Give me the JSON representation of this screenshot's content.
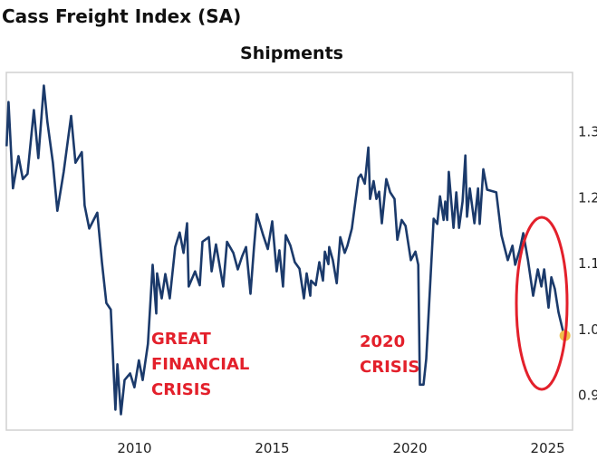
{
  "chart_data": {
    "type": "line",
    "title": "Cass Freight Index (SA)",
    "subtitle": "Shipments",
    "xlabel": "",
    "ylabel": "",
    "xlim": [
      2005.35,
      2025.9
    ],
    "ylim": [
      0.846,
      1.389
    ],
    "x_ticks": [
      2010,
      2015,
      2020,
      2025
    ],
    "x_tick_labels": [
      "2010",
      "2015",
      "2020",
      "2025"
    ],
    "y_ticks": [
      0.9,
      1.0,
      1.1,
      1.2,
      1.3
    ],
    "y_tick_labels": [
      "0.9",
      "1.0",
      "1.1",
      "1.2",
      "1.3"
    ],
    "y_axis_side": "right",
    "grid": false,
    "colors": {
      "line": "#1b3a6b",
      "last_point": "#f0bf4c",
      "annotation": "#e3202b",
      "axis": "#cfcfcf"
    },
    "series": [
      {
        "x": [
          2005.36,
          2005.43,
          2005.59,
          2005.79,
          2005.95,
          2006.12,
          2006.35,
          2006.51,
          2006.71,
          2006.84,
          2007.04,
          2007.2,
          2007.43,
          2007.7,
          2007.86,
          2008.09,
          2008.19,
          2008.36,
          2008.65,
          2008.82,
          2008.98,
          2009.14,
          2009.31,
          2009.38,
          2009.51,
          2009.64,
          2009.84,
          2010.0,
          2010.16,
          2010.3,
          2010.49,
          2010.66,
          2010.79,
          2010.82,
          2010.99,
          2011.12,
          2011.28,
          2011.48,
          2011.64,
          2011.78,
          2011.91,
          2011.97,
          2012.2,
          2012.37,
          2012.47,
          2012.7,
          2012.8,
          2012.96,
          2013.22,
          2013.36,
          2013.59,
          2013.75,
          2013.91,
          2014.05,
          2014.21,
          2014.34,
          2014.44,
          2014.67,
          2014.84,
          2015.0,
          2015.16,
          2015.26,
          2015.39,
          2015.49,
          2015.66,
          2015.82,
          2015.99,
          2016.15,
          2016.25,
          2016.38,
          2016.41,
          2016.58,
          2016.71,
          2016.84,
          2016.91,
          2017.04,
          2017.07,
          2017.2,
          2017.34,
          2017.47,
          2017.63,
          2017.73,
          2017.89,
          2018.13,
          2018.22,
          2018.36,
          2018.49,
          2018.55,
          2018.68,
          2018.78,
          2018.88,
          2018.98,
          2019.14,
          2019.28,
          2019.44,
          2019.54,
          2019.7,
          2019.84,
          2020.03,
          2020.2,
          2020.3,
          2020.36,
          2020.49,
          2020.59,
          2020.86,
          2020.99,
          2021.09,
          2021.22,
          2021.28,
          2021.35,
          2021.41,
          2021.58,
          2021.68,
          2021.78,
          2021.91,
          2022.01,
          2022.07,
          2022.17,
          2022.34,
          2022.47,
          2022.53,
          2022.66,
          2022.8,
          2023.13,
          2023.32,
          2023.55,
          2023.72,
          2023.82,
          2023.98,
          2024.11,
          2024.28,
          2024.47,
          2024.64,
          2024.77,
          2024.87,
          2025.03,
          2025.13,
          2025.26,
          2025.39,
          2025.56
        ],
        "y": [
          1.277,
          1.344,
          1.213,
          1.262,
          1.227,
          1.235,
          1.332,
          1.259,
          1.369,
          1.314,
          1.252,
          1.179,
          1.238,
          1.323,
          1.252,
          1.268,
          1.187,
          1.152,
          1.176,
          1.101,
          1.039,
          1.029,
          0.877,
          0.946,
          0.87,
          0.922,
          0.932,
          0.911,
          0.952,
          0.922,
          0.977,
          1.097,
          1.023,
          1.084,
          1.046,
          1.083,
          1.046,
          1.124,
          1.146,
          1.115,
          1.16,
          1.064,
          1.087,
          1.066,
          1.132,
          1.139,
          1.087,
          1.128,
          1.064,
          1.132,
          1.115,
          1.09,
          1.11,
          1.124,
          1.053,
          1.124,
          1.174,
          1.142,
          1.121,
          1.163,
          1.087,
          1.119,
          1.064,
          1.142,
          1.126,
          1.101,
          1.091,
          1.046,
          1.084,
          1.05,
          1.073,
          1.066,
          1.101,
          1.073,
          1.117,
          1.098,
          1.124,
          1.104,
          1.069,
          1.139,
          1.115,
          1.126,
          1.152,
          1.229,
          1.234,
          1.22,
          1.275,
          1.197,
          1.224,
          1.197,
          1.208,
          1.16,
          1.227,
          1.207,
          1.197,
          1.135,
          1.165,
          1.156,
          1.104,
          1.117,
          1.097,
          0.915,
          0.915,
          0.954,
          1.167,
          1.159,
          1.201,
          1.165,
          1.193,
          1.165,
          1.238,
          1.153,
          1.207,
          1.153,
          1.193,
          1.263,
          1.17,
          1.213,
          1.16,
          1.213,
          1.159,
          1.242,
          1.211,
          1.207,
          1.142,
          1.104,
          1.126,
          1.097,
          1.119,
          1.145,
          1.105,
          1.05,
          1.09,
          1.064,
          1.09,
          1.032,
          1.078,
          1.06,
          1.025,
          0.995
        ]
      }
    ],
    "annotations": [
      {
        "lines": [
          "GREAT",
          "FINANCIAL",
          "CRISIS"
        ]
      },
      {
        "lines": [
          "2020",
          "CRISIS"
        ]
      }
    ]
  }
}
